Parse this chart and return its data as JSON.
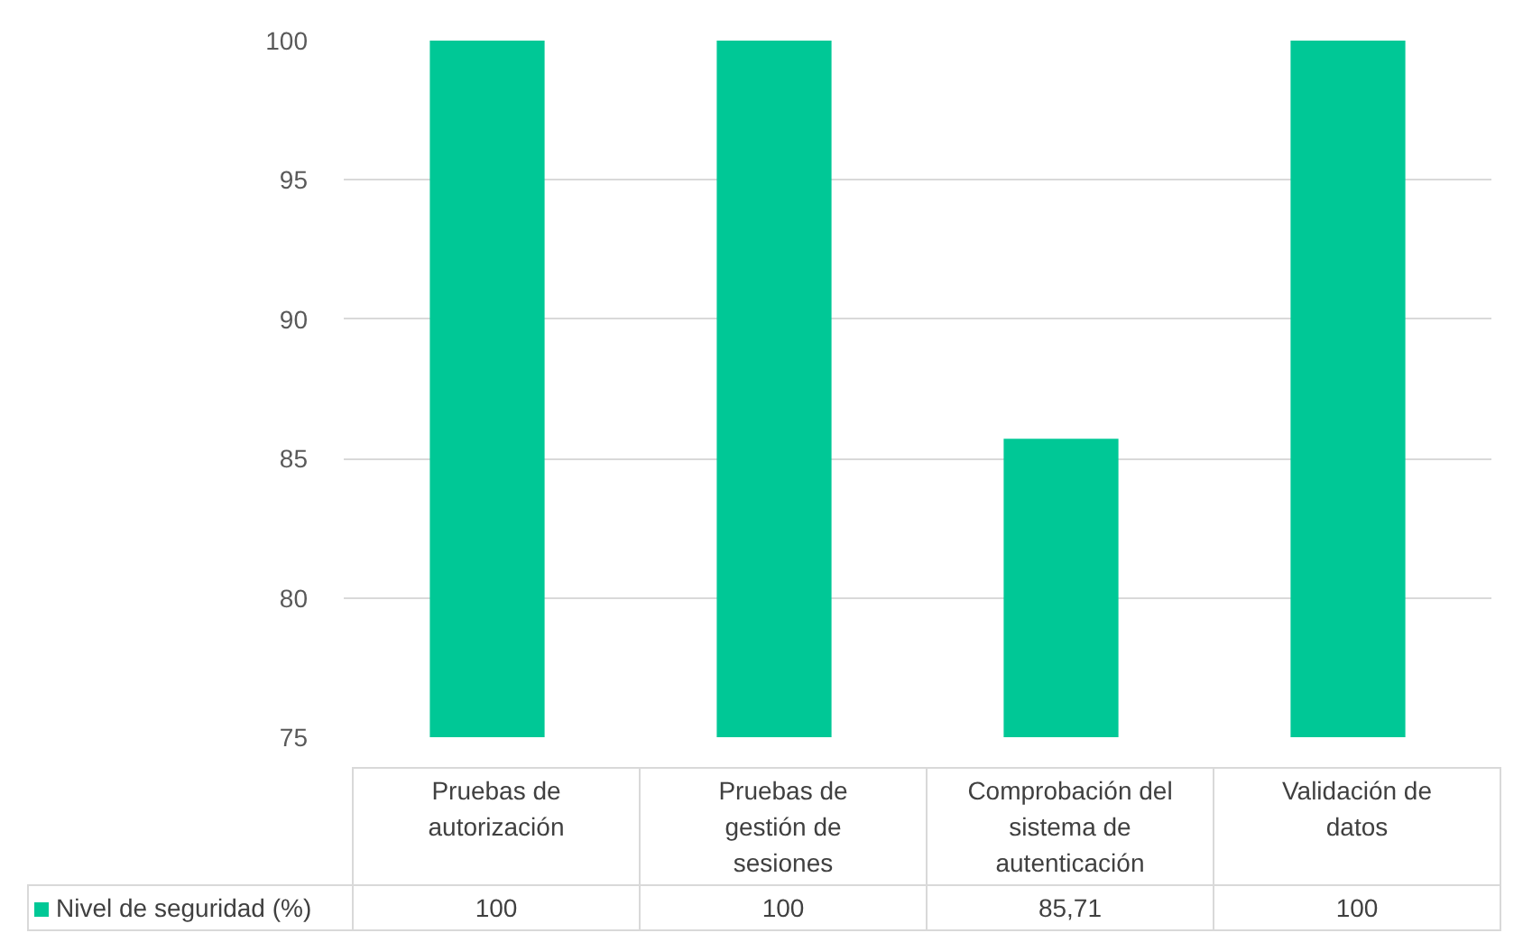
{
  "chart_data": {
    "type": "bar",
    "categories": [
      "Pruebas de autorización",
      "Pruebas de gestión de sesiones",
      "Comprobación del sistema de autenticación",
      "Validación de datos"
    ],
    "series": [
      {
        "name": "Nivel de seguridad (%)",
        "color": "#00c896",
        "values": [
          100,
          100,
          85.71,
          100
        ],
        "value_labels": [
          "100",
          "100",
          "85,71",
          "100"
        ]
      }
    ],
    "ylim": [
      75,
      100
    ],
    "yticks": [
      75,
      80,
      85,
      90,
      95,
      100
    ],
    "grid": "y",
    "legend": "bottom"
  }
}
